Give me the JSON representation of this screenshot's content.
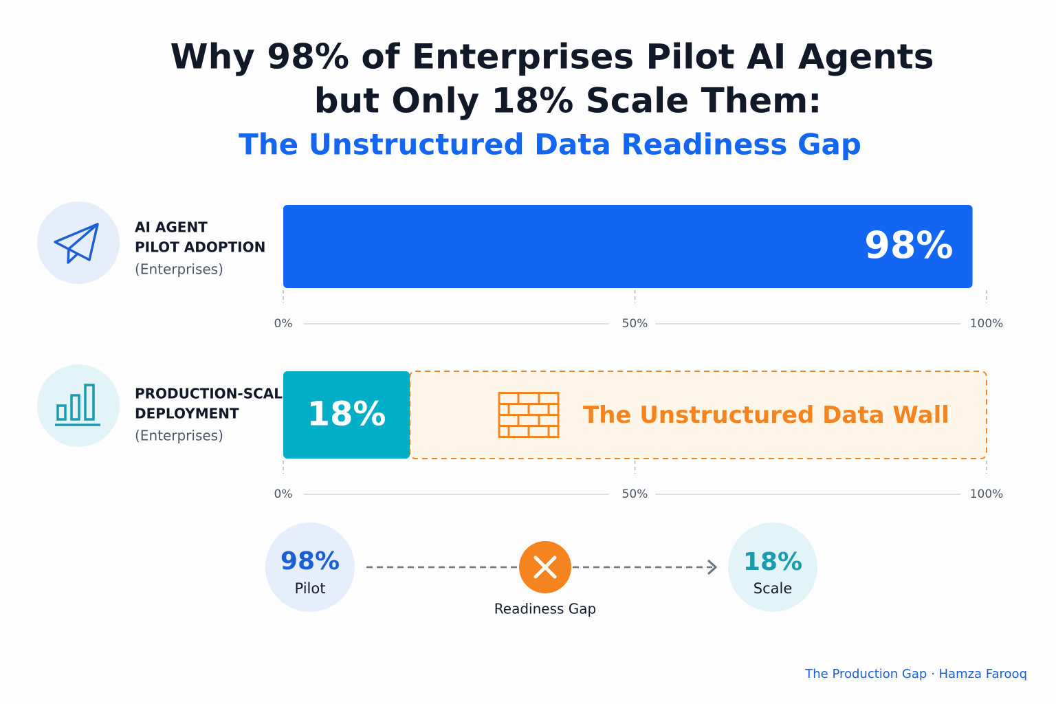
{
  "title": [
    "Why 98% of Enterprises Pilot AI Agents",
    "but Only 18% Scale Them:"
  ],
  "subtitle": "The Unstructured Data Readiness Gap",
  "chart_data": [
    {
      "type": "bar",
      "orientation": "horizontal",
      "label_lines": [
        "AI AGENT",
        "PILOT ADOPTION"
      ],
      "sublabel": "(Enterprises)",
      "values": [
        98
      ],
      "value_labels": [
        "98%"
      ],
      "value_label_position": "inside-end",
      "color": "#1266f1",
      "icon_bg": "#e6eefc",
      "xlim": [
        0,
        100
      ],
      "xticks": [
        {
          "value": 0,
          "label": "0%"
        },
        {
          "value": 50,
          "label": "50%"
        },
        {
          "value": 100,
          "label": "100%"
        }
      ]
    },
    {
      "type": "bar",
      "orientation": "horizontal",
      "label_lines": [
        "PRODUCTION-SCALE",
        "DEPLOYMENT"
      ],
      "sublabel": "(Enterprises)",
      "values": [
        18
      ],
      "value_labels": [
        "18%"
      ],
      "value_label_position": "inside-center",
      "color": "#00aec7",
      "icon_bg": "#e3f4f8",
      "annotation": "The Unstructured Data Wall",
      "annotation_color": "#f5841f",
      "xlim": [
        0,
        100
      ],
      "xticks": [
        {
          "value": 0,
          "label": "0%"
        },
        {
          "value": 50,
          "label": "50%"
        },
        {
          "value": 100,
          "label": "100%"
        }
      ]
    }
  ],
  "flow": {
    "start": {
      "value": "98%",
      "label": "Pilot"
    },
    "middle": "Readiness Gap",
    "end": {
      "value": "18%",
      "label": "Scale"
    }
  },
  "footer": "The Production Gap · Hamza Farooq"
}
